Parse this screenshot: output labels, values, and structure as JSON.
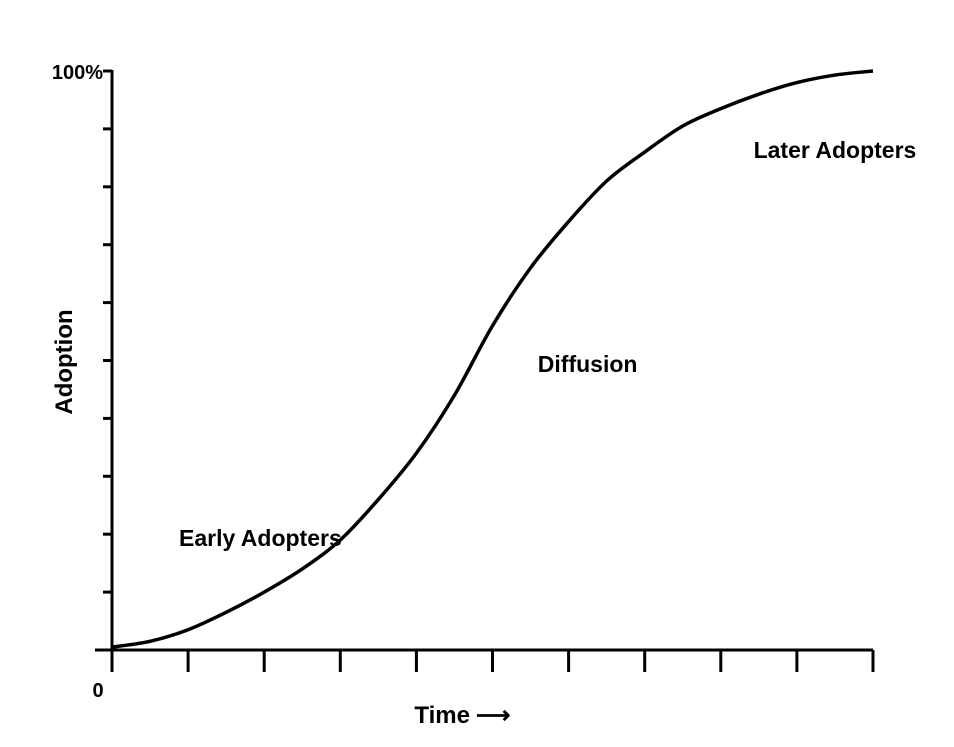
{
  "chart_data": {
    "type": "line",
    "title": "",
    "xlabel": "Time",
    "xlabel_arrow": "⟶",
    "ylabel": "Adoption",
    "y_top_label": "100%",
    "origin_label": "0",
    "ylim": [
      0,
      100
    ],
    "xlim": [
      0,
      10
    ],
    "grid": false,
    "x_tick_count": 10,
    "y_tick_count": 10,
    "series": [
      {
        "x": [
          0,
          0.5,
          1,
          1.5,
          2,
          2.5,
          3,
          3.5,
          4,
          4.5,
          5,
          5.5,
          6,
          6.5,
          7,
          7.5,
          8,
          8.5,
          9,
          9.5,
          10
        ],
        "y": [
          0.5,
          1.5,
          3.5,
          6.5,
          10,
          14,
          19,
          26,
          34,
          44,
          56,
          66,
          74,
          81,
          86,
          90.5,
          93.5,
          96,
          98,
          99.3,
          100
        ]
      }
    ],
    "annotations": [
      {
        "text": "Early Adopters",
        "x": 1.95,
        "y": 18
      },
      {
        "text": "Diffusion",
        "x": 6.25,
        "y": 48
      },
      {
        "text": "Later Adopters",
        "x": 9.5,
        "y": 85
      }
    ]
  }
}
